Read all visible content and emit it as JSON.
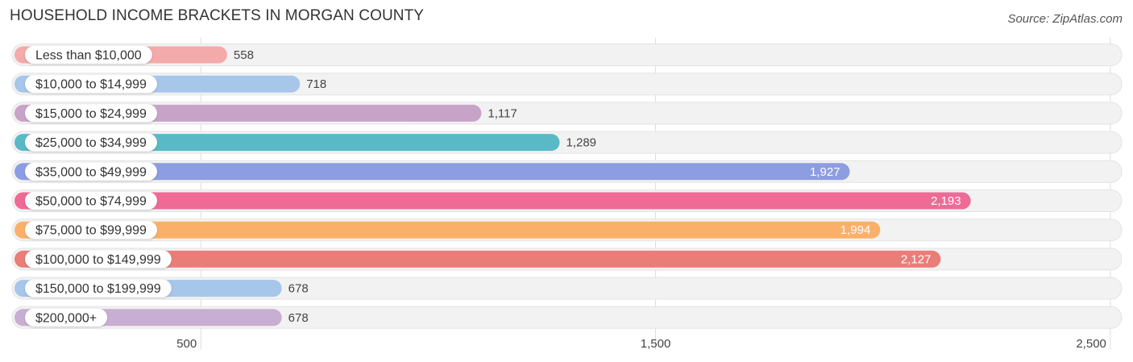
{
  "title": "HOUSEHOLD INCOME BRACKETS IN MORGAN COUNTY",
  "source": "Source: ZipAtlas.com",
  "chart_data": {
    "type": "bar",
    "orientation": "horizontal",
    "title": "HOUSEHOLD INCOME BRACKETS IN MORGAN COUNTY",
    "categories": [
      "Less than $10,000",
      "$10,000 to $14,999",
      "$15,000 to $24,999",
      "$25,000 to $34,999",
      "$35,000 to $49,999",
      "$50,000 to $74,999",
      "$75,000 to $99,999",
      "$100,000 to $149,999",
      "$150,000 to $199,999",
      "$200,000+"
    ],
    "values": [
      558,
      718,
      1117,
      1289,
      1927,
      2193,
      1994,
      2127,
      678,
      678
    ],
    "value_labels": [
      "558",
      "718",
      "1,117",
      "1,289",
      "1,927",
      "2,193",
      "1,994",
      "2,127",
      "678",
      "678"
    ],
    "colors": [
      "#f4aaaa",
      "#a6c6ea",
      "#c8a3c8",
      "#5ab9c6",
      "#8d9de2",
      "#f06a96",
      "#fbb06a",
      "#ea7d78",
      "#a6c6ea",
      "#c8aed2"
    ],
    "x_ticks": [
      500,
      1500,
      2500
    ],
    "x_tick_labels": [
      "500",
      "1,500",
      "2,500"
    ],
    "xlim": [
      85,
      2525
    ],
    "grid": true
  }
}
